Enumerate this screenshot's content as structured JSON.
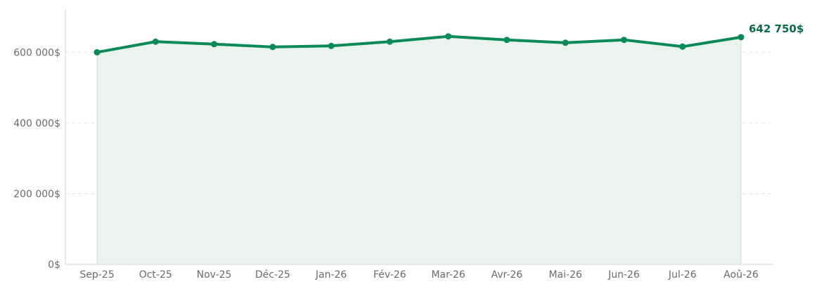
{
  "chart_data": {
    "type": "area",
    "categories": [
      "Sep-25",
      "Oct-25",
      "Nov-25",
      "Déc-25",
      "Jan-26",
      "Fév-26",
      "Mar-26",
      "Avr-26",
      "Mai-26",
      "Jun-26",
      "Jul-26",
      "Aoû-26"
    ],
    "series": [
      {
        "values": [
          600000,
          630000,
          623000,
          615000,
          618000,
          630000,
          645000,
          635000,
          627000,
          635000,
          616000,
          642750
        ]
      }
    ],
    "end_label": "642 750$",
    "ylim": [
      0,
      720000
    ],
    "yticks": [
      0,
      200000,
      400000,
      600000
    ],
    "ytick_labels": [
      "0$",
      "200 000$",
      "400 000$",
      "600 000$"
    ],
    "grid": true,
    "colors": {
      "line": "#0b8a57",
      "fill": "#e9f4ef",
      "label": "#0b6b45"
    }
  }
}
